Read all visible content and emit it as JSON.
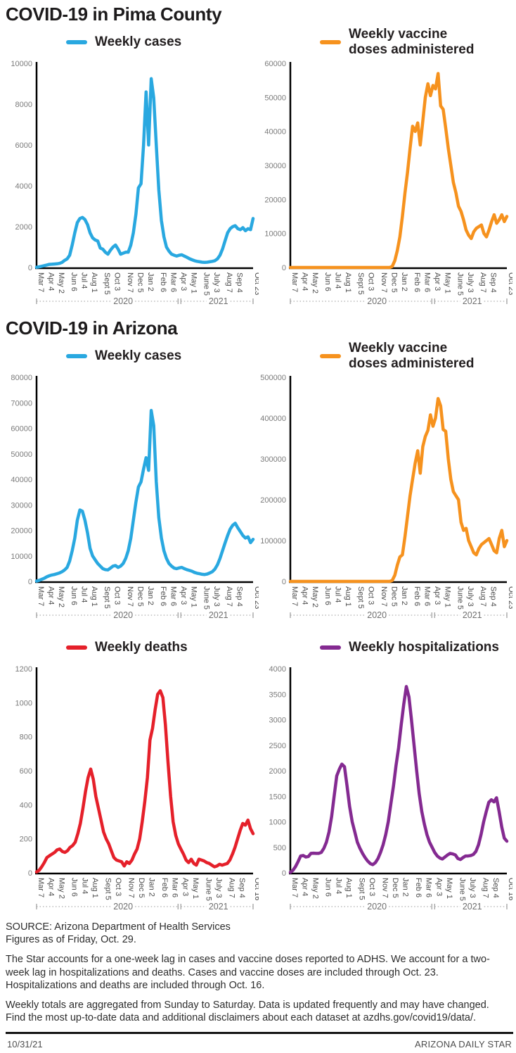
{
  "titles": {
    "section1": "COVID-19 in Pima County",
    "section2": "COVID-19 in Arizona"
  },
  "axis": {
    "sets": {
      "cases": {
        "labels": [
          "Mar 7",
          "Apr 4",
          "May 2",
          "Jun 6",
          "Jul 4",
          "Aug 1",
          "Sept 5",
          "Oct 3",
          "Nov 7",
          "Dec 5",
          "Jan 2",
          "Feb 6",
          "Mar 6",
          "Apr 3",
          "May 1",
          "June 5",
          "July 3",
          "Aug 7",
          "Sep 4",
          "Oct 23"
        ],
        "weeks": [
          0,
          4,
          8,
          13,
          17,
          21,
          26,
          30,
          35,
          39,
          43,
          48,
          52,
          56,
          60,
          65,
          69,
          74,
          78,
          85
        ],
        "total": 85
      },
      "deaths": {
        "labels": [
          "Mar 7",
          "Apr 4",
          "May 2",
          "Jun 6",
          "Jul 4",
          "Aug 1",
          "Sept 5",
          "Oct 3",
          "Nov 7",
          "Dec 5",
          "Jan 2",
          "Feb 6",
          "Mar 6",
          "Apr 3",
          "May 1",
          "June 5",
          "July 3",
          "Aug 7",
          "Sep 4",
          "Oct 16"
        ],
        "weeks": [
          0,
          4,
          8,
          13,
          17,
          21,
          26,
          30,
          35,
          39,
          43,
          48,
          52,
          56,
          60,
          65,
          69,
          74,
          78,
          84
        ],
        "total": 84
      }
    },
    "years": [
      "2020",
      "2021"
    ]
  },
  "chart_data": [
    {
      "id": "pima-cases",
      "type": "line",
      "name": "Pima County weekly cases",
      "legend": "Weekly cases",
      "color": "#29a8e0",
      "ylim": [
        0,
        10000
      ],
      "yticks": [
        0,
        2000,
        4000,
        6000,
        8000,
        10000
      ],
      "x_set": "cases",
      "values": [
        10,
        30,
        60,
        90,
        120,
        150,
        160,
        170,
        180,
        200,
        250,
        350,
        420,
        600,
        1100,
        1700,
        2200,
        2400,
        2450,
        2350,
        2100,
        1700,
        1450,
        1350,
        1300,
        950,
        900,
        750,
        650,
        850,
        1000,
        1100,
        900,
        650,
        700,
        750,
        750,
        1100,
        1700,
        2600,
        3900,
        4100,
        6000,
        8600,
        6000,
        9250,
        8300,
        6000,
        3800,
        2300,
        1500,
        1000,
        800,
        650,
        600,
        560,
        600,
        620,
        560,
        500,
        430,
        380,
        330,
        300,
        280,
        260,
        250,
        260,
        280,
        300,
        330,
        420,
        600,
        900,
        1300,
        1700,
        1900,
        2000,
        2050,
        1900,
        1850,
        1950,
        1800,
        1900,
        1850,
        2400
      ]
    },
    {
      "id": "pima-vaccines",
      "type": "line",
      "name": "Pima County weekly vaccine doses administered",
      "legend": "Weekly vaccine\ndoses administered",
      "color": "#f6921e",
      "ylim": [
        0,
        60000
      ],
      "yticks": [
        0,
        10000,
        20000,
        30000,
        40000,
        50000,
        60000
      ],
      "x_set": "cases",
      "values": [
        0,
        0,
        0,
        0,
        0,
        0,
        0,
        0,
        0,
        0,
        0,
        0,
        0,
        0,
        0,
        0,
        0,
        0,
        0,
        0,
        0,
        0,
        0,
        0,
        0,
        0,
        0,
        0,
        0,
        0,
        0,
        0,
        0,
        0,
        0,
        0,
        0,
        0,
        0,
        0,
        300,
        2000,
        5000,
        9000,
        15000,
        22000,
        28000,
        35000,
        41500,
        40000,
        42500,
        36000,
        43000,
        50000,
        54000,
        50500,
        53500,
        52500,
        57000,
        47500,
        46500,
        41000,
        35000,
        30000,
        25000,
        22000,
        18000,
        16500,
        14000,
        11000,
        9500,
        8500,
        10500,
        11500,
        12000,
        12500,
        10000,
        9000,
        11000,
        13500,
        15500,
        13000,
        14000,
        15500,
        13500,
        15000
      ]
    },
    {
      "id": "az-cases",
      "type": "line",
      "name": "Arizona weekly cases",
      "legend": "Weekly cases",
      "color": "#29a8e0",
      "ylim": [
        0,
        80000
      ],
      "yticks": [
        0,
        10000,
        20000,
        30000,
        40000,
        50000,
        60000,
        70000,
        80000
      ],
      "x_set": "cases",
      "values": [
        100,
        400,
        800,
        1200,
        1800,
        2200,
        2500,
        2700,
        3000,
        3300,
        3800,
        4500,
        5500,
        8000,
        12000,
        17000,
        24000,
        28000,
        27500,
        24000,
        19000,
        13000,
        10000,
        8500,
        7000,
        6000,
        5000,
        4600,
        4500,
        5200,
        6000,
        6200,
        5500,
        6000,
        7000,
        9000,
        12000,
        17000,
        24000,
        31000,
        37000,
        39000,
        44000,
        48500,
        43500,
        67000,
        61000,
        39000,
        25000,
        17000,
        12000,
        9000,
        7000,
        6000,
        5200,
        5000,
        5300,
        5500,
        5000,
        4600,
        4300,
        4000,
        3500,
        3200,
        3000,
        2800,
        2700,
        2900,
        3300,
        3800,
        4800,
        6500,
        9000,
        12000,
        15000,
        18000,
        20500,
        22000,
        22800,
        21000,
        19500,
        18000,
        17000,
        17500,
        15200,
        16500
      ]
    },
    {
      "id": "az-vaccines",
      "type": "line",
      "name": "Arizona weekly vaccine doses administered",
      "legend": "Weekly vaccine\ndoses administered",
      "color": "#f6921e",
      "ylim": [
        0,
        500000
      ],
      "yticks": [
        0,
        100000,
        200000,
        300000,
        400000,
        500000
      ],
      "x_set": "cases",
      "values": [
        0,
        0,
        0,
        0,
        0,
        0,
        0,
        0,
        0,
        0,
        0,
        0,
        0,
        0,
        0,
        0,
        0,
        0,
        0,
        0,
        0,
        0,
        0,
        0,
        0,
        0,
        0,
        0,
        0,
        0,
        0,
        0,
        0,
        0,
        0,
        0,
        0,
        0,
        0,
        0,
        2000,
        15000,
        40000,
        60000,
        65000,
        110000,
        160000,
        210000,
        250000,
        290000,
        320000,
        265000,
        330000,
        355000,
        370000,
        408000,
        380000,
        400000,
        448000,
        430000,
        372000,
        368000,
        300000,
        250000,
        220000,
        210000,
        200000,
        145000,
        125000,
        130000,
        100000,
        85000,
        70000,
        65000,
        80000,
        90000,
        95000,
        100000,
        105000,
        90000,
        75000,
        70000,
        105000,
        125000,
        85000,
        100000
      ]
    },
    {
      "id": "az-deaths",
      "type": "line",
      "name": "Arizona weekly deaths",
      "legend": "Weekly deaths",
      "color": "#e5202a",
      "ylim": [
        0,
        1200
      ],
      "yticks": [
        0,
        200,
        400,
        600,
        800,
        1000,
        1200
      ],
      "x_set": "deaths",
      "values": [
        5,
        15,
        35,
        60,
        90,
        100,
        110,
        120,
        135,
        140,
        125,
        120,
        130,
        150,
        160,
        180,
        230,
        290,
        380,
        480,
        560,
        610,
        550,
        450,
        380,
        310,
        240,
        200,
        170,
        130,
        90,
        75,
        70,
        65,
        40,
        65,
        55,
        75,
        110,
        140,
        200,
        300,
        420,
        560,
        780,
        850,
        960,
        1050,
        1070,
        1030,
        870,
        650,
        450,
        300,
        220,
        170,
        140,
        110,
        75,
        60,
        80,
        55,
        45,
        80,
        75,
        70,
        60,
        55,
        45,
        35,
        40,
        50,
        45,
        50,
        55,
        75,
        110,
        150,
        200,
        250,
        290,
        280,
        310,
        260,
        230
      ]
    },
    {
      "id": "az-hospitalizations",
      "type": "line",
      "name": "Arizona weekly hospitalizations",
      "legend": "Weekly hospitalizations",
      "color": "#842a91",
      "ylim": [
        0,
        4000
      ],
      "yticks": [
        0,
        500,
        1000,
        1500,
        2000,
        2500,
        3000,
        3500,
        4000
      ],
      "x_set": "deaths",
      "values": [
        10,
        50,
        120,
        220,
        330,
        340,
        310,
        320,
        380,
        385,
        380,
        380,
        400,
        480,
        600,
        800,
        1100,
        1500,
        1900,
        2030,
        2130,
        2080,
        1700,
        1300,
        1000,
        800,
        600,
        480,
        380,
        300,
        230,
        180,
        160,
        200,
        280,
        400,
        550,
        750,
        1000,
        1350,
        1700,
        2100,
        2450,
        2900,
        3300,
        3650,
        3450,
        3000,
        2500,
        2000,
        1550,
        1200,
        950,
        750,
        600,
        500,
        400,
        330,
        290,
        270,
        310,
        350,
        380,
        370,
        350,
        280,
        260,
        300,
        330,
        330,
        340,
        360,
        420,
        550,
        750,
        1000,
        1200,
        1380,
        1430,
        1390,
        1470,
        1200,
        900,
        680,
        620
      ]
    }
  ],
  "footer": {
    "source_line1": "SOURCE: Arizona Department of Health Services",
    "source_line2": "Figures as of Friday, Oct. 29.",
    "disclaimer1": "The Star accounts for a one-week lag in cases and vaccine doses reported to ADHS. We account for a two-week lag in hospitalizations and deaths. Cases and vaccine doses are included through Oct. 23. Hospitalizations and deaths are included through Oct. 16.",
    "disclaimer2": "Weekly totals are aggregated from Sunday to Saturday. Data is updated frequently and may have changed. Find the most up-to-date data and additional disclaimers about each dataset at azdhs.gov/covid19/data/.",
    "dateline": "10/31/21",
    "brand": "ARIZONA DAILY STAR"
  }
}
